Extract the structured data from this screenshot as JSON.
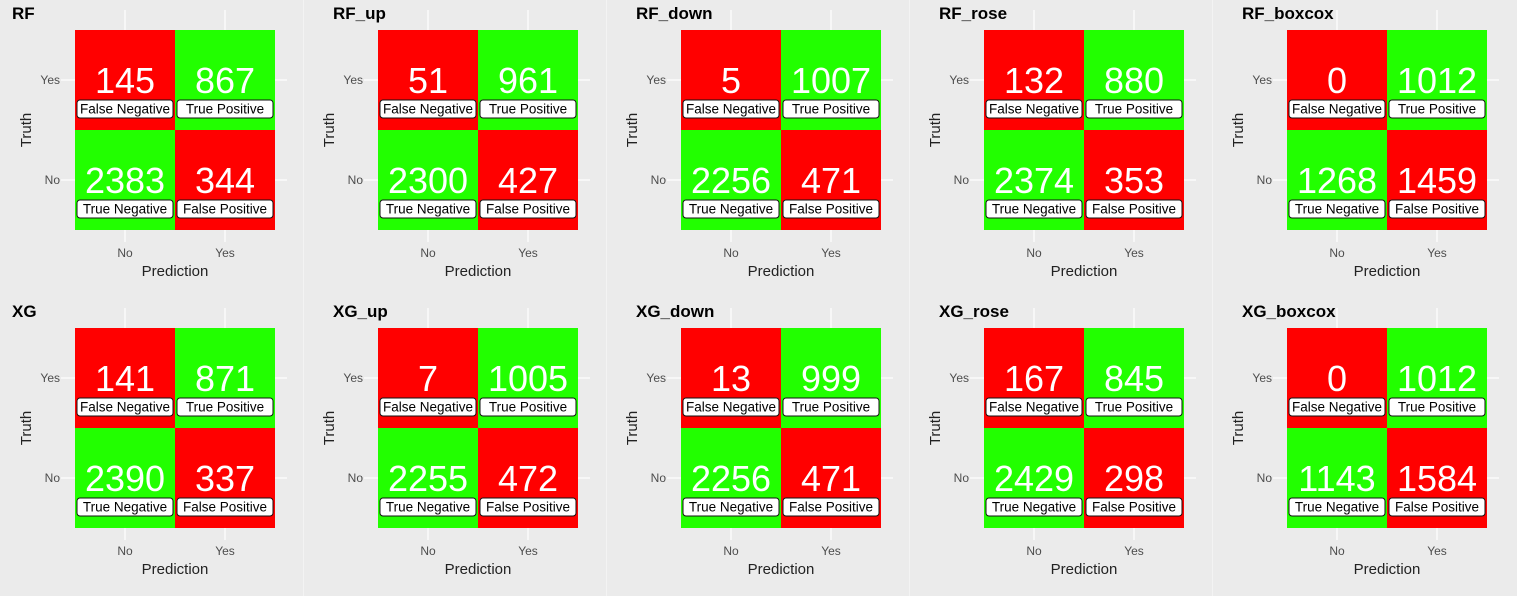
{
  "colors": {
    "wrong": "#ff0000",
    "right": "#22ff00",
    "background": "#ebebeb"
  },
  "axes": {
    "xlabel": "Prediction",
    "ylabel": "Truth",
    "xticks": [
      "No",
      "Yes"
    ],
    "yticks": [
      "Yes",
      "No"
    ]
  },
  "cell_labels": {
    "fn": "False Negative",
    "tp": "True Positive",
    "tn": "True Negative",
    "fp": "False Positive"
  },
  "chart_data": [
    {
      "type": "heatmap",
      "title": "RF",
      "fn": 145,
      "tp": 867,
      "tn": 2383,
      "fp": 344
    },
    {
      "type": "heatmap",
      "title": "RF_up",
      "fn": 51,
      "tp": 961,
      "tn": 2300,
      "fp": 427
    },
    {
      "type": "heatmap",
      "title": "RF_down",
      "fn": 5,
      "tp": 1007,
      "tn": 2256,
      "fp": 471
    },
    {
      "type": "heatmap",
      "title": "RF_rose",
      "fn": 132,
      "tp": 880,
      "tn": 2374,
      "fp": 353
    },
    {
      "type": "heatmap",
      "title": "RF_boxcox",
      "fn": 0,
      "tp": 1012,
      "tn": 1268,
      "fp": 1459
    },
    {
      "type": "heatmap",
      "title": "XG",
      "fn": 141,
      "tp": 871,
      "tn": 2390,
      "fp": 337
    },
    {
      "type": "heatmap",
      "title": "XG_up",
      "fn": 7,
      "tp": 1005,
      "tn": 2255,
      "fp": 472
    },
    {
      "type": "heatmap",
      "title": "XG_down",
      "fn": 13,
      "tp": 999,
      "tn": 2256,
      "fp": 471
    },
    {
      "type": "heatmap",
      "title": "XG_rose",
      "fn": 167,
      "tp": 845,
      "tn": 2429,
      "fp": 298
    },
    {
      "type": "heatmap",
      "title": "XG_boxcox",
      "fn": 0,
      "tp": 1012,
      "tn": 1143,
      "fp": 1584
    }
  ]
}
